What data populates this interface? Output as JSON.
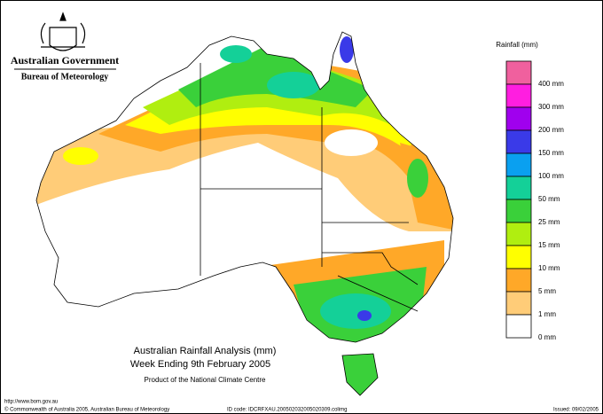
{
  "header": {
    "government": "Australian Government",
    "bureau": "Bureau of Meteorology"
  },
  "legend": {
    "title": "Rainfall (mm)",
    "items": [
      {
        "label": "400 mm",
        "color": "#f0609e"
      },
      {
        "label": "300 mm",
        "color": "#ff1ee0"
      },
      {
        "label": "200 mm",
        "color": "#a000ee"
      },
      {
        "label": "150 mm",
        "color": "#3a3ae8"
      },
      {
        "label": "100 mm",
        "color": "#0aa0f0"
      },
      {
        "label": "50 mm",
        "color": "#14d098"
      },
      {
        "label": "25 mm",
        "color": "#3ad03a"
      },
      {
        "label": "15 mm",
        "color": "#b0ee10"
      },
      {
        "label": "10 mm",
        "color": "#ffff00"
      },
      {
        "label": "5 mm",
        "color": "#ffa828"
      },
      {
        "label": "1 mm",
        "color": "#ffcc78"
      },
      {
        "label": "0 mm",
        "color": "#ffffff"
      }
    ]
  },
  "title": {
    "line1": "Australian Rainfall Analysis (mm)",
    "line2": "Week Ending 9th February 2005",
    "product": "Product of the National Climate Centre"
  },
  "footer": {
    "url": "http://www.bom.gov.au",
    "copyright": "© Commonwealth of Australia 2005, Australian Bureau of Meteorology",
    "id_code": "ID code: IDCRFXAU.200502032005020309.colimg",
    "issued": "Issued: 09/02/2005"
  }
}
